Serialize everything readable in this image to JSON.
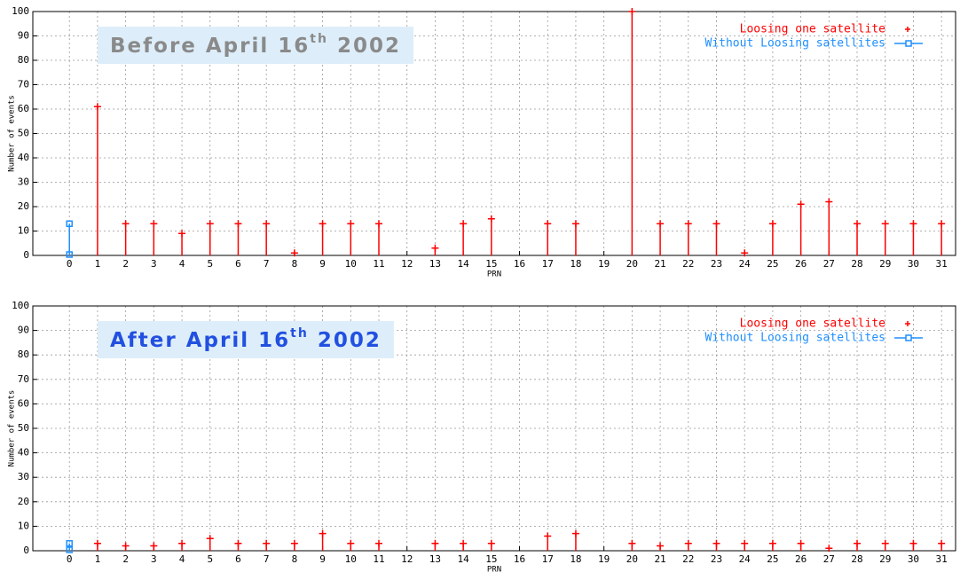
{
  "chart_data": [
    {
      "type": "impulse",
      "title": {
        "pre": "Before April 16",
        "sup": "th",
        "post": " 2002"
      },
      "title_color": "#8a8a8a",
      "xlabel": "PRN",
      "ylabel": "Number of events",
      "x": [
        0,
        1,
        2,
        3,
        4,
        5,
        6,
        7,
        8,
        9,
        10,
        11,
        12,
        13,
        14,
        15,
        16,
        17,
        18,
        19,
        20,
        21,
        22,
        23,
        24,
        25,
        26,
        27,
        28,
        29,
        30,
        31
      ],
      "xlim": [
        -1.3,
        31.5
      ],
      "xticks": [
        0,
        1,
        2,
        3,
        4,
        5,
        6,
        7,
        8,
        9,
        10,
        11,
        12,
        13,
        14,
        15,
        16,
        17,
        18,
        19,
        20,
        21,
        22,
        23,
        24,
        25,
        26,
        27,
        28,
        29,
        30,
        31
      ],
      "ylim": [
        0,
        100
      ],
      "yticks": [
        0,
        10,
        20,
        30,
        40,
        50,
        60,
        70,
        80,
        90,
        100
      ],
      "grid": true,
      "legend": "top right",
      "series": [
        {
          "name": "Loosing one satellite",
          "color": "#ff0000",
          "marker": "plus",
          "values": [
            null,
            61,
            13,
            13,
            9,
            13,
            13,
            13,
            1,
            13,
            13,
            13,
            null,
            3,
            13,
            15,
            null,
            13,
            13,
            null,
            100,
            13,
            13,
            13,
            1,
            13,
            21,
            22,
            13,
            13,
            13,
            13
          ]
        },
        {
          "name": "Without Loosing satellites",
          "color": "#1e8fff",
          "marker": "square",
          "values": [
            13,
            null,
            null,
            null,
            null,
            null,
            null,
            null,
            null,
            null,
            null,
            null,
            null,
            null,
            null,
            null,
            null,
            null,
            null,
            null,
            null,
            null,
            null,
            null,
            null,
            null,
            null,
            null,
            null,
            null,
            null,
            null
          ]
        }
      ]
    },
    {
      "type": "impulse",
      "title": {
        "pre": "After April 16",
        "sup": "th",
        "post": " 2002"
      },
      "title_color": "#2250e0",
      "xlabel": "PRN",
      "ylabel": "Number of events",
      "x": [
        0,
        1,
        2,
        3,
        4,
        5,
        6,
        7,
        8,
        9,
        10,
        11,
        12,
        13,
        14,
        15,
        16,
        17,
        18,
        19,
        20,
        21,
        22,
        23,
        24,
        25,
        26,
        27,
        28,
        29,
        30,
        31
      ],
      "xlim": [
        -1.3,
        31.5
      ],
      "xticks": [
        0,
        1,
        2,
        3,
        4,
        5,
        6,
        7,
        8,
        9,
        10,
        11,
        12,
        13,
        14,
        15,
        16,
        17,
        18,
        19,
        20,
        21,
        22,
        23,
        24,
        25,
        26,
        27,
        28,
        29,
        30,
        31
      ],
      "ylim": [
        0,
        100
      ],
      "yticks": [
        0,
        10,
        20,
        30,
        40,
        50,
        60,
        70,
        80,
        90,
        100
      ],
      "grid": true,
      "legend": "top right",
      "series": [
        {
          "name": "Loosing one satellite",
          "color": "#ff0000",
          "marker": "plus",
          "values": [
            null,
            3,
            2,
            2,
            3,
            5,
            3,
            3,
            3,
            7,
            3,
            3,
            null,
            3,
            3,
            3,
            null,
            6,
            7,
            null,
            3,
            2,
            3,
            3,
            3,
            3,
            3,
            1,
            3,
            3,
            3,
            3
          ]
        },
        {
          "name": "Without Loosing satellites",
          "color": "#1e8fff",
          "marker": "square",
          "values": [
            3,
            null,
            null,
            null,
            null,
            null,
            null,
            null,
            null,
            null,
            null,
            null,
            null,
            null,
            null,
            null,
            null,
            null,
            null,
            null,
            null,
            null,
            null,
            null,
            null,
            null,
            null,
            null,
            null,
            null,
            null,
            null
          ]
        }
      ]
    }
  ]
}
